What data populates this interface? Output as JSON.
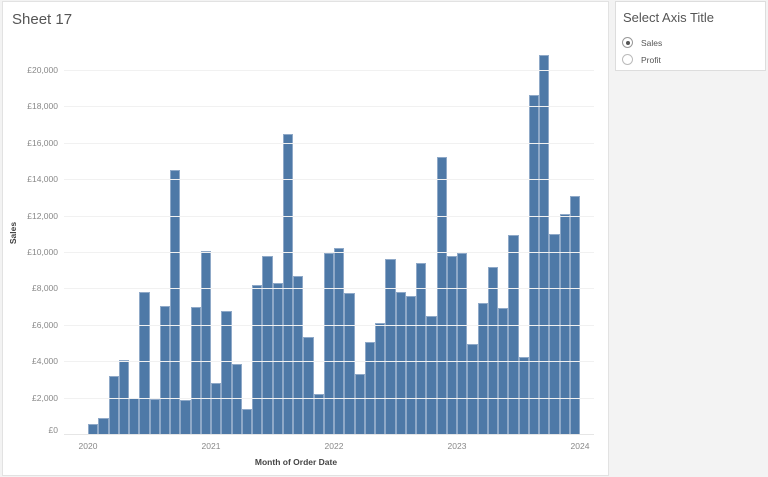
{
  "sheet": {
    "title": "Sheet 17"
  },
  "parameter": {
    "title": "Select Axis Title",
    "options": [
      {
        "label": "Sales",
        "selected": true
      },
      {
        "label": "Profit",
        "selected": false
      }
    ]
  },
  "colors": {
    "bar": "#4e79a7",
    "bar_edge": "#8fa9c8",
    "grid": "#f1f1f1"
  },
  "chart_data": {
    "type": "bar",
    "title": "Sheet 17",
    "xlabel": "Month of Order Date",
    "ylabel": "Sales",
    "ylim": [
      0,
      21500
    ],
    "yticks": [
      "£0",
      "£2,000",
      "£4,000",
      "£6,000",
      "£8,000",
      "£10,000",
      "£12,000",
      "£14,000",
      "£16,000",
      "£18,000",
      "£20,000"
    ],
    "ytick_values": [
      0,
      2000,
      4000,
      6000,
      8000,
      10000,
      12000,
      14000,
      16000,
      18000,
      20000
    ],
    "xticks": [
      "2020",
      "2021",
      "2022",
      "2023",
      "2024"
    ],
    "grid": true,
    "categories": [
      "2020-01",
      "2020-02",
      "2020-03",
      "2020-04",
      "2020-05",
      "2020-06",
      "2020-07",
      "2020-08",
      "2020-09",
      "2020-10",
      "2020-11",
      "2020-12",
      "2021-01",
      "2021-02",
      "2021-03",
      "2021-04",
      "2021-05",
      "2021-06",
      "2021-07",
      "2021-08",
      "2021-09",
      "2021-10",
      "2021-11",
      "2021-12",
      "2022-01",
      "2022-02",
      "2022-03",
      "2022-04",
      "2022-05",
      "2022-06",
      "2022-07",
      "2022-08",
      "2022-09",
      "2022-10",
      "2022-11",
      "2022-12",
      "2023-01",
      "2023-02",
      "2023-03",
      "2023-04",
      "2023-05",
      "2023-06",
      "2023-07",
      "2023-08",
      "2023-09",
      "2023-10",
      "2023-11",
      "2023-12"
    ],
    "values": [
      550,
      900,
      3200,
      4050,
      2000,
      7800,
      1950,
      7050,
      14500,
      1850,
      7000,
      10050,
      2800,
      6750,
      3850,
      1350,
      8200,
      9800,
      8300,
      16500,
      8700,
      5350,
      2200,
      9950,
      10200,
      7750,
      3300,
      5050,
      6100,
      9600,
      7800,
      7600,
      9400,
      6500,
      15200,
      9800,
      9950,
      4950,
      7200,
      9150,
      6900,
      10950,
      4250,
      18600,
      20800,
      11000,
      12100,
      13050
    ]
  }
}
